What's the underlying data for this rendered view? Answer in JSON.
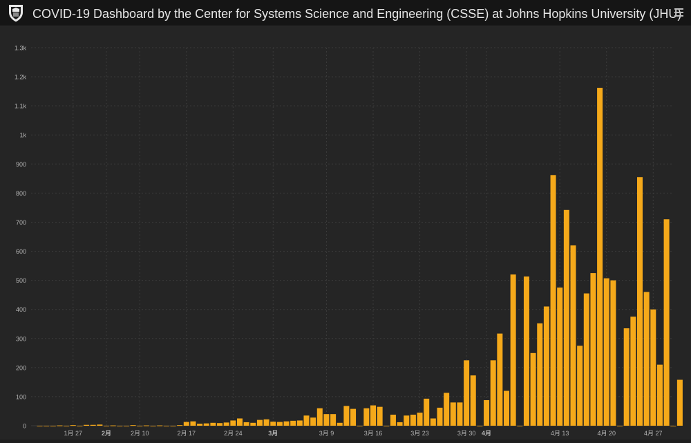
{
  "header": {
    "title": "COVID-19 Dashboard by the Center for Systems Science and Engineering (CSSE) at Johns Hopkins University (JHU)",
    "logo_icon": "university-shield-icon",
    "menu_icon": "hamburger-menu-icon"
  },
  "colors": {
    "background": "#252525",
    "header_bg": "#151515",
    "bar": "#f5a91a",
    "grid": "#3c3c3c",
    "tick_text": "#b5b5b5"
  },
  "chart_data": {
    "type": "bar",
    "title": "",
    "xlabel": "",
    "ylabel": "",
    "ylim": [
      0,
      1300
    ],
    "grid": true,
    "y_ticks": [
      {
        "value": 0,
        "label": "0"
      },
      {
        "value": 100,
        "label": "100"
      },
      {
        "value": 200,
        "label": "200"
      },
      {
        "value": 300,
        "label": "300"
      },
      {
        "value": 400,
        "label": "400"
      },
      {
        "value": 500,
        "label": "500"
      },
      {
        "value": 600,
        "label": "600"
      },
      {
        "value": 700,
        "label": "700"
      },
      {
        "value": 800,
        "label": "800"
      },
      {
        "value": 900,
        "label": "900"
      },
      {
        "value": 1000,
        "label": "1k"
      },
      {
        "value": 1100,
        "label": "1.1k"
      },
      {
        "value": 1200,
        "label": "1.2k"
      },
      {
        "value": 1300,
        "label": "1.3k"
      }
    ],
    "x_ticks": [
      {
        "index": 5,
        "label": "1月 27",
        "bold": false
      },
      {
        "index": 10,
        "label": "2月",
        "bold": true
      },
      {
        "index": 15,
        "label": "2月 10",
        "bold": false
      },
      {
        "index": 22,
        "label": "2月 17",
        "bold": false
      },
      {
        "index": 29,
        "label": "2月 24",
        "bold": false
      },
      {
        "index": 35,
        "label": "3月",
        "bold": true
      },
      {
        "index": 43,
        "label": "3月 9",
        "bold": false
      },
      {
        "index": 50,
        "label": "3月 16",
        "bold": false
      },
      {
        "index": 57,
        "label": "3月 23",
        "bold": false
      },
      {
        "index": 64,
        "label": "3月 30",
        "bold": false
      },
      {
        "index": 67,
        "label": "4月",
        "bold": true
      },
      {
        "index": 78,
        "label": "4月 13",
        "bold": false
      },
      {
        "index": 85,
        "label": "4月 20",
        "bold": false
      },
      {
        "index": 92,
        "label": "4月 27",
        "bold": false
      }
    ],
    "values": [
      0,
      0,
      0,
      1,
      0,
      2,
      0,
      3,
      3,
      4,
      0,
      1,
      0,
      0,
      2,
      0,
      1,
      0,
      1,
      0,
      0,
      2,
      13,
      15,
      7,
      8,
      10,
      9,
      11,
      18,
      25,
      12,
      10,
      20,
      22,
      14,
      13,
      15,
      17,
      18,
      35,
      28,
      60,
      40,
      40,
      10,
      68,
      58,
      0,
      60,
      70,
      65,
      0,
      38,
      12,
      35,
      38,
      45,
      93,
      25,
      62,
      113,
      80,
      80,
      225,
      173,
      0,
      88,
      225,
      317,
      120,
      520,
      0,
      513,
      250,
      352,
      410,
      862,
      475,
      742,
      620,
      275,
      455,
      525,
      1162,
      507,
      500,
      0,
      335,
      375,
      855,
      460,
      400,
      210,
      710,
      0,
      158
    ]
  }
}
